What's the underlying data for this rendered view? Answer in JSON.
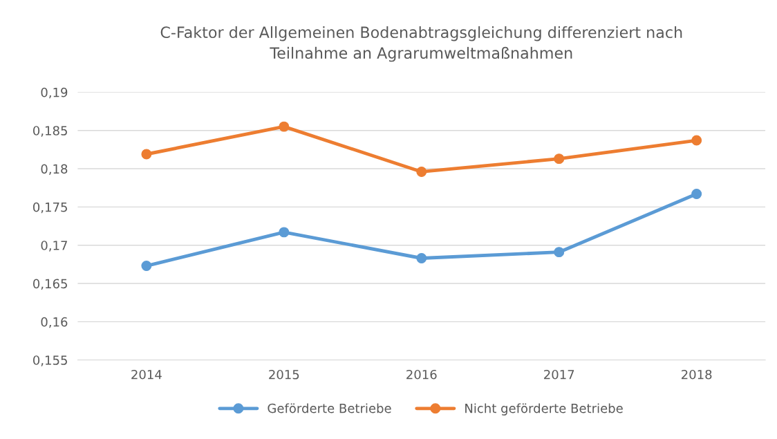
{
  "chart_data": {
    "type": "line",
    "title": "C-Faktor der Allgemeinen Bodenabtragsgleichung differenziert nach\nTeilnahme an Agrarumweltmaßnahmen",
    "categories": [
      "2014",
      "2015",
      "2016",
      "2017",
      "2018"
    ],
    "series": [
      {
        "name": "Geförderte Betriebe",
        "color": "#5b9bd5",
        "values": [
          0.1673,
          0.1717,
          0.1683,
          0.1691,
          0.1767
        ]
      },
      {
        "name": "Nicht geförderte Betriebe",
        "color": "#ed7d31",
        "values": [
          0.1819,
          0.1855,
          0.1796,
          0.1813,
          0.1837
        ]
      }
    ],
    "ylim": [
      0.155,
      0.19
    ],
    "yticks": [
      {
        "value": 0.155,
        "label": "0,155"
      },
      {
        "value": 0.16,
        "label": "0,16"
      },
      {
        "value": 0.165,
        "label": "0,165"
      },
      {
        "value": 0.17,
        "label": "0,17"
      },
      {
        "value": 0.175,
        "label": "0,175"
      },
      {
        "value": 0.18,
        "label": "0,18"
      },
      {
        "value": 0.185,
        "label": "0,185"
      },
      {
        "value": 0.19,
        "label": "0,19"
      }
    ],
    "grid": "y",
    "legend": "bottom",
    "marker": "circle",
    "line_style": "solid"
  }
}
